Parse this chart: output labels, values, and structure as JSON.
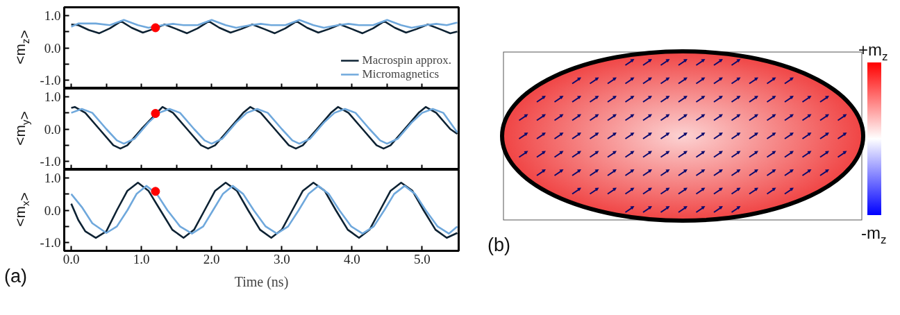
{
  "chart_data": [
    {
      "type": "line",
      "ylabel": "<m$_{z}$>",
      "xlim": [
        -0.1,
        5.52
      ],
      "ylim": [
        -1.25,
        1.25
      ],
      "tick_labels": "y",
      "legend": "bottom right",
      "xticks": [
        {
          "value": 0,
          "label": null
        },
        {
          "value": 0.5,
          "label": null
        },
        {
          "value": 1,
          "label": null
        },
        {
          "value": 1.5,
          "label": null
        },
        {
          "value": 2,
          "label": null
        },
        {
          "value": 2.5,
          "label": null
        },
        {
          "value": 3,
          "label": null
        },
        {
          "value": 3.5,
          "label": null
        },
        {
          "value": 4,
          "label": null
        },
        {
          "value": 4.5,
          "label": null
        },
        {
          "value": 5,
          "label": null
        }
      ],
      "yticks": [
        {
          "value": -1,
          "label": "-1.0"
        },
        {
          "value": -0.5,
          "label": null
        },
        {
          "value": 0,
          "label": "0.0"
        },
        {
          "value": 0.5,
          "label": null
        },
        {
          "value": 1,
          "label": "1.0"
        }
      ],
      "series": [
        {
          "name": "Macrospin approx.",
          "color": "#0d2233",
          "x": [
            0,
            0.1,
            0.25,
            0.4,
            0.55,
            0.71,
            0.86,
            1.02,
            1.17,
            1.33,
            1.5,
            1.65,
            1.8,
            1.96,
            2.11,
            2.27,
            2.42,
            2.58,
            2.75,
            2.9,
            3.05,
            3.21,
            3.36,
            3.52,
            3.67,
            3.83,
            4.0,
            4.15,
            4.3,
            4.46,
            4.61,
            4.77,
            4.92,
            5.08,
            5.25,
            5.4,
            5.5
          ],
          "values": [
            0.72,
            0.7,
            0.55,
            0.45,
            0.6,
            0.82,
            0.62,
            0.47,
            0.58,
            0.72,
            0.58,
            0.45,
            0.6,
            0.82,
            0.62,
            0.47,
            0.58,
            0.72,
            0.58,
            0.45,
            0.6,
            0.82,
            0.62,
            0.47,
            0.58,
            0.72,
            0.58,
            0.45,
            0.6,
            0.82,
            0.62,
            0.47,
            0.58,
            0.72,
            0.58,
            0.45,
            0.5
          ]
        },
        {
          "name": "Micromagnetics",
          "color": "#6fa8dc",
          "x": [
            0,
            0.1,
            0.35,
            0.55,
            0.75,
            0.95,
            1.1,
            1.3,
            1.45,
            1.6,
            1.8,
            2.0,
            2.2,
            2.35,
            2.55,
            2.7,
            2.85,
            3.05,
            3.25,
            3.45,
            3.6,
            3.8,
            3.95,
            4.1,
            4.3,
            4.5,
            4.7,
            4.85,
            5.05,
            5.2,
            5.35,
            5.5
          ],
          "values": [
            0.65,
            0.75,
            0.75,
            0.7,
            0.86,
            0.7,
            0.62,
            0.7,
            0.74,
            0.7,
            0.7,
            0.86,
            0.7,
            0.62,
            0.7,
            0.74,
            0.7,
            0.7,
            0.86,
            0.7,
            0.62,
            0.7,
            0.74,
            0.7,
            0.7,
            0.86,
            0.7,
            0.62,
            0.7,
            0.74,
            0.7,
            0.78
          ]
        },
        {
          "type": "scatter",
          "marker": "circle",
          "color": "#ff0000",
          "x": [
            1.2
          ],
          "values": [
            0.62
          ]
        }
      ]
    },
    {
      "type": "line",
      "ylabel": "<m$_{y}$>",
      "xlim": [
        -0.1,
        5.52
      ],
      "ylim": [
        -1.25,
        1.25
      ],
      "tick_labels": "y",
      "xticks": [
        {
          "value": 0,
          "label": null
        },
        {
          "value": 0.5,
          "label": null
        },
        {
          "value": 1,
          "label": null
        },
        {
          "value": 1.5,
          "label": null
        },
        {
          "value": 2,
          "label": null
        },
        {
          "value": 2.5,
          "label": null
        },
        {
          "value": 3,
          "label": null
        },
        {
          "value": 3.5,
          "label": null
        },
        {
          "value": 4,
          "label": null
        },
        {
          "value": 4.5,
          "label": null
        },
        {
          "value": 5,
          "label": null
        }
      ],
      "yticks": [
        {
          "value": -1,
          "label": "-1.0"
        },
        {
          "value": -0.5,
          "label": null
        },
        {
          "value": 0,
          "label": "0.0"
        },
        {
          "value": 0.5,
          "label": null
        },
        {
          "value": 1,
          "label": "1.0"
        }
      ],
      "series": [
        {
          "color": "#0d2233",
          "x": [
            0,
            0.05,
            0.2,
            0.4,
            0.6,
            0.7,
            0.8,
            1.0,
            1.3,
            1.45,
            1.65,
            1.85,
            1.95,
            2.05,
            2.25,
            2.45,
            2.55,
            2.7,
            2.9,
            3.1,
            3.2,
            3.3,
            3.5,
            3.7,
            3.8,
            3.95,
            4.15,
            4.35,
            4.45,
            4.55,
            4.75,
            4.95,
            5.05,
            5.2,
            5.4,
            5.5
          ],
          "values": [
            0.65,
            0.68,
            0.5,
            0,
            -0.5,
            -0.6,
            -0.5,
            0,
            0.68,
            0.5,
            0,
            -0.5,
            -0.6,
            -0.5,
            0,
            0.5,
            0.68,
            0.5,
            0,
            -0.5,
            -0.6,
            -0.5,
            0,
            0.5,
            0.68,
            0.5,
            0,
            -0.5,
            -0.6,
            -0.5,
            0,
            0.5,
            0.68,
            0.5,
            0,
            -0.15
          ]
        },
        {
          "color": "#6fa8dc",
          "x": [
            0,
            0.15,
            0.3,
            0.5,
            0.65,
            0.75,
            0.9,
            1.1,
            1.25,
            1.4,
            1.55,
            1.75,
            1.9,
            2.0,
            2.15,
            2.35,
            2.5,
            2.65,
            2.8,
            3.0,
            3.15,
            3.25,
            3.4,
            3.6,
            3.75,
            3.9,
            4.05,
            4.25,
            4.4,
            4.5,
            4.65,
            4.85,
            5.0,
            5.15,
            5.3,
            5.5
          ],
          "values": [
            0.5,
            0.62,
            0.5,
            0,
            -0.35,
            -0.45,
            -0.3,
            0.2,
            0.5,
            0.62,
            0.5,
            0,
            -0.35,
            -0.45,
            -0.3,
            0.2,
            0.5,
            0.62,
            0.5,
            0,
            -0.35,
            -0.45,
            -0.3,
            0.2,
            0.5,
            0.62,
            0.5,
            0,
            -0.35,
            -0.45,
            -0.3,
            0.2,
            0.5,
            0.62,
            0.5,
            -0.1
          ]
        },
        {
          "type": "scatter",
          "marker": "circle",
          "color": "#ff0000",
          "x": [
            1.2
          ],
          "values": [
            0.48
          ]
        }
      ]
    },
    {
      "type": "line",
      "ylabel": "<m$_{x}$>",
      "xlabel": "Time (ns)",
      "annotations": [
        "(a)"
      ],
      "xlim": [
        -0.1,
        5.52
      ],
      "ylim": [
        -1.25,
        1.25
      ],
      "xticks": [
        {
          "value": 0,
          "label": "0.0"
        },
        {
          "value": 0.5,
          "label": null
        },
        {
          "value": 1,
          "label": "1.0"
        },
        {
          "value": 1.5,
          "label": null
        },
        {
          "value": 2,
          "label": "2.0"
        },
        {
          "value": 2.5,
          "label": null
        },
        {
          "value": 3,
          "label": "3.0"
        },
        {
          "value": 3.5,
          "label": null
        },
        {
          "value": 4,
          "label": "4.0"
        },
        {
          "value": 4.5,
          "label": null
        },
        {
          "value": 5,
          "label": "5.0"
        }
      ],
      "yticks": [
        {
          "value": -1,
          "label": "-1.0"
        },
        {
          "value": -0.5,
          "label": null
        },
        {
          "value": 0,
          "label": "0.0"
        },
        {
          "value": 0.5,
          "label": null
        },
        {
          "value": 1,
          "label": "1.0"
        }
      ],
      "series": [
        {
          "color": "#0d2233",
          "x": [
            0,
            0.1,
            0.2,
            0.35,
            0.5,
            0.65,
            0.8,
            0.95,
            1.1,
            1.27,
            1.44,
            1.6,
            1.75,
            1.9,
            2.05,
            2.2,
            2.36,
            2.52,
            2.69,
            2.85,
            3.0,
            3.15,
            3.3,
            3.45,
            3.61,
            3.77,
            3.94,
            4.1,
            4.25,
            4.4,
            4.55,
            4.7,
            4.86,
            5.02,
            5.19,
            5.35,
            5.5
          ],
          "values": [
            0.2,
            -0.3,
            -0.65,
            -0.85,
            -0.65,
            0,
            0.6,
            0.85,
            0.6,
            0,
            -0.6,
            -0.85,
            -0.6,
            0,
            0.6,
            0.85,
            0.6,
            0,
            -0.6,
            -0.85,
            -0.6,
            0,
            0.6,
            0.85,
            0.6,
            0,
            -0.6,
            -0.85,
            -0.6,
            0,
            0.6,
            0.85,
            0.6,
            0,
            -0.6,
            -0.85,
            -0.7
          ]
        },
        {
          "color": "#6fa8dc",
          "x": [
            0,
            0.15,
            0.3,
            0.5,
            0.65,
            0.8,
            0.93,
            1.07,
            1.22,
            1.37,
            1.55,
            1.72,
            1.88,
            2.02,
            2.16,
            2.3,
            2.45,
            2.6,
            2.77,
            2.93,
            3.09,
            3.24,
            3.38,
            3.52,
            3.67,
            3.82,
            3.99,
            4.15,
            4.31,
            4.46,
            4.6,
            4.75,
            4.9,
            5.05,
            5.22,
            5.38,
            5.5
          ],
          "values": [
            0.5,
            0.1,
            -0.4,
            -0.7,
            -0.5,
            0,
            0.5,
            0.75,
            0.5,
            0,
            -0.5,
            -0.72,
            -0.5,
            0,
            0.5,
            0.75,
            0.5,
            0,
            -0.5,
            -0.72,
            -0.5,
            0,
            0.5,
            0.75,
            0.5,
            0,
            -0.5,
            -0.72,
            -0.5,
            0,
            0.5,
            0.75,
            0.5,
            0,
            -0.5,
            -0.72,
            -0.5
          ]
        },
        {
          "type": "scatter",
          "marker": "circle",
          "color": "#ff0000",
          "x": [
            1.2
          ],
          "values": [
            0.58
          ]
        }
      ]
    },
    {
      "type": "other",
      "annotations": [
        "(b)",
        "+m$_{z}$",
        "-m$_{z}$"
      ]
    }
  ]
}
